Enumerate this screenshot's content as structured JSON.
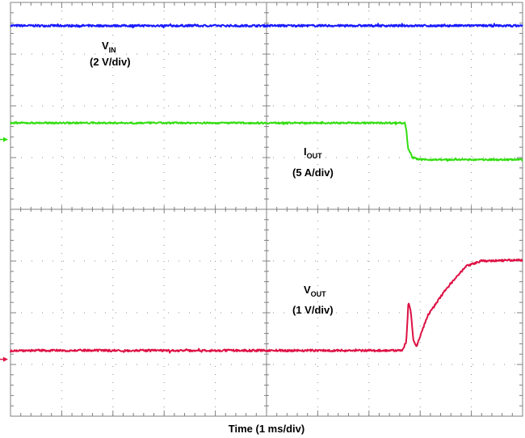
{
  "chart_data": {
    "type": "line",
    "grid": true,
    "x": {
      "divisions": 10,
      "label": "Time (1 ms/div)",
      "range_div": [
        0,
        10
      ]
    },
    "y": {
      "divisions": 8,
      "range_div": [
        0,
        8
      ]
    },
    "series": [
      {
        "name_main": "V",
        "name_sub": "IN",
        "scale": "(2 V/div)",
        "color": "#1a1aff",
        "ref_level_div": null,
        "points": [
          [
            0,
            7.55
          ],
          [
            10,
            7.55
          ]
        ],
        "noise": 0.02
      },
      {
        "name_main": "I",
        "name_sub": "OUT",
        "scale": "(5 A/div)",
        "color": "#33dd11",
        "ref_level_div": 5.35,
        "points": [
          [
            0,
            5.67
          ],
          [
            7.7,
            5.67
          ],
          [
            7.73,
            5.55
          ],
          [
            7.76,
            5.2
          ],
          [
            7.85,
            5.0
          ],
          [
            8.0,
            4.96
          ],
          [
            10,
            4.96
          ]
        ],
        "noise": 0.015
      },
      {
        "name_main": "V",
        "name_sub": "OUT",
        "scale": "(1 V/div)",
        "color": "#dd1144",
        "ref_level_div": 1.1,
        "points": [
          [
            0,
            1.27
          ],
          [
            7.65,
            1.27
          ],
          [
            7.73,
            1.45
          ],
          [
            7.77,
            2.2
          ],
          [
            7.82,
            2.0
          ],
          [
            7.87,
            1.45
          ],
          [
            7.93,
            1.35
          ],
          [
            8.0,
            1.55
          ],
          [
            8.15,
            1.95
          ],
          [
            8.5,
            2.45
          ],
          [
            8.9,
            2.9
          ],
          [
            9.2,
            3.0
          ],
          [
            10,
            3.02
          ]
        ],
        "noise": 0.02
      }
    ]
  }
}
